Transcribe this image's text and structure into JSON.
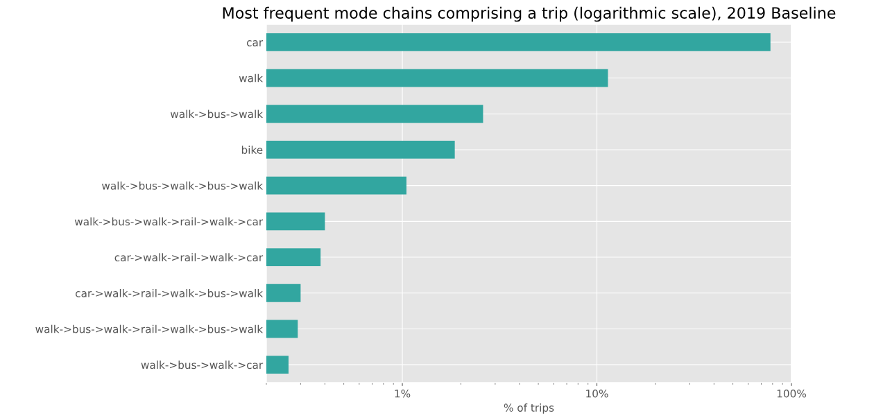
{
  "chart_data": {
    "type": "bar",
    "orientation": "horizontal",
    "log": "x",
    "title": "Most frequent mode chains comprising a trip (logarithmic scale), 2019 Baseline",
    "xlabel": "% of trips",
    "categories": [
      "car",
      "walk",
      "walk->bus->walk",
      "bike",
      "walk->bus->walk->bus->walk",
      "walk->bus->walk->rail->walk->car",
      "car->walk->rail->walk->car",
      "car->walk->rail->walk->bus->walk",
      "walk->bus->walk->rail->walk->bus->walk",
      "walk->bus->walk->car"
    ],
    "values": [
      78,
      11.4,
      2.6,
      1.86,
      1.05,
      0.4,
      0.38,
      0.3,
      0.29,
      0.26
    ],
    "color": "#32a6a0",
    "xlim": [
      0.2,
      100
    ],
    "xticks": [
      {
        "value": 1,
        "label": "1%"
      },
      {
        "value": 10,
        "label": "10%"
      },
      {
        "value": 100,
        "label": "100%"
      }
    ],
    "grid": true
  }
}
